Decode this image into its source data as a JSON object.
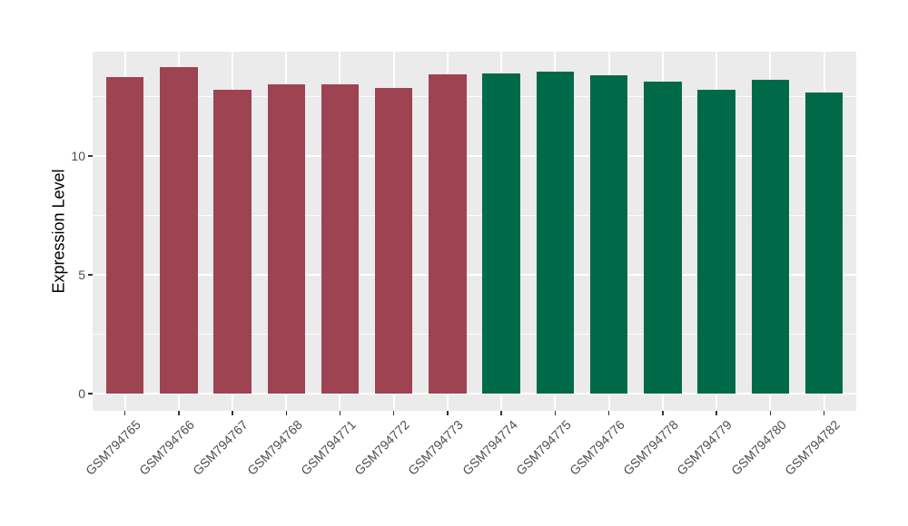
{
  "figure": {
    "background": "#ffffff",
    "panel_background": "#ebebeb",
    "grid_major_color": "#ffffff",
    "grid_minor_color": "#ffffff",
    "axis_text_color": "#4d4d4d",
    "axis_title_color": "#000000",
    "group_colors": {
      "left_group": "#9e4352",
      "right_group": "#006a48"
    }
  },
  "chart_data": {
    "type": "bar",
    "title": "",
    "xlabel": "",
    "ylabel": "Expression Level",
    "categories": [
      "GSM794765",
      "GSM794766",
      "GSM794767",
      "GSM794768",
      "GSM794771",
      "GSM794772",
      "GSM794773",
      "GSM794774",
      "GSM794775",
      "GSM794776",
      "GSM794778",
      "GSM794779",
      "GSM794780",
      "GSM794782"
    ],
    "values": [
      13.32,
      13.73,
      12.79,
      13.0,
      13.0,
      12.86,
      13.42,
      13.47,
      13.55,
      13.41,
      13.14,
      12.77,
      13.21,
      12.68
    ],
    "bar_colors": [
      "#9e4352",
      "#9e4352",
      "#9e4352",
      "#9e4352",
      "#9e4352",
      "#9e4352",
      "#9e4352",
      "#006a48",
      "#006a48",
      "#006a48",
      "#006a48",
      "#006a48",
      "#006a48",
      "#006a48"
    ],
    "yticks": [
      0,
      5,
      10
    ],
    "ytick_labels": [
      "0",
      "5",
      "10"
    ],
    "yminor": [
      2.5,
      7.5,
      12.5
    ],
    "ylim": [
      -0.73,
      14.39
    ],
    "bar_width_fraction": 0.7,
    "grid": true,
    "legend": false
  }
}
